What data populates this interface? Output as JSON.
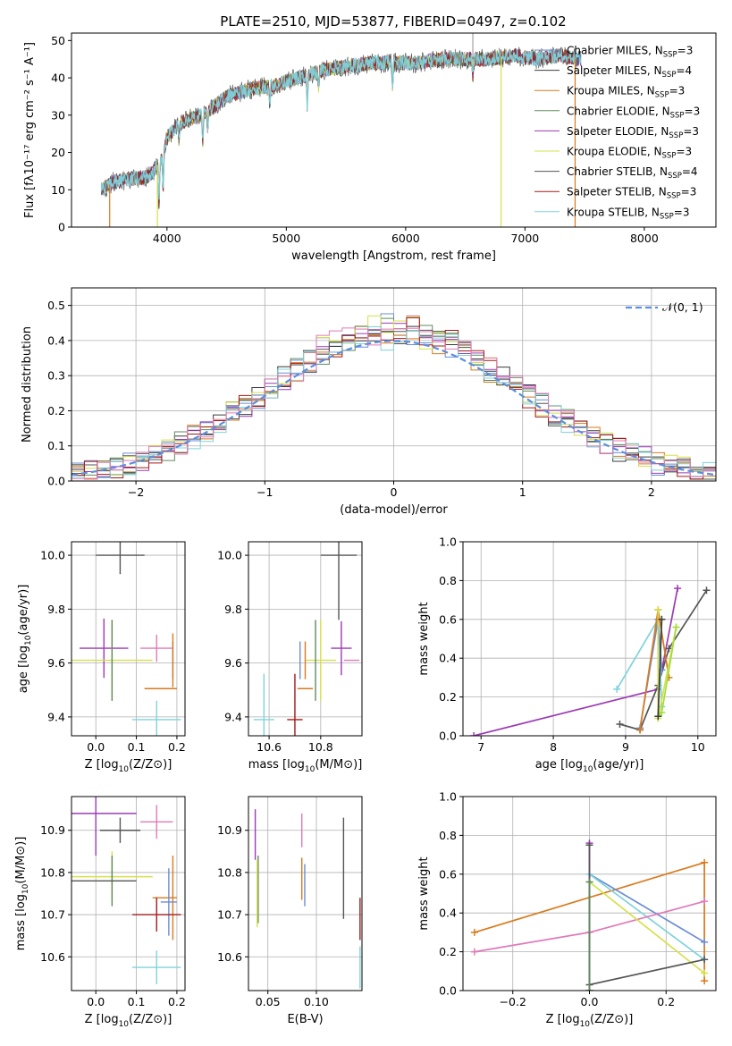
{
  "figure_title": "PLATE=2510, MJD=53877, FIBERID=0497, z=0.102",
  "colors": {
    "chabrier_miles": "#6b8ed6",
    "salpeter_miles": "#3b3b3b",
    "kroupa_miles": "#d97a1c",
    "chabrier_elodie": "#5f8a5f",
    "salpeter_elodie": "#9b3bb5",
    "kroupa_elodie": "#d6e04a",
    "chabrier_stelib": "#555555",
    "salpeter_stelib": "#a31a1a",
    "kroupa_stelib": "#7fd3dc",
    "gaussian": "#5b8ee0",
    "pink": "#e07ab8",
    "lime": "#a4dd3c"
  },
  "chart_data": [
    {
      "id": "spectrum",
      "type": "line",
      "xlabel": "wavelength [Angstrom, rest frame]",
      "ylabel": "Flux [fλ10⁻¹⁷ erg cm⁻² s⁻¹ A⁻¹]",
      "xlim": [
        3200,
        8600
      ],
      "ylim": [
        0,
        52
      ],
      "xticks": [
        4000,
        5000,
        6000,
        7000,
        8000
      ],
      "yticks": [
        0,
        10,
        20,
        30,
        40,
        50
      ],
      "legend_position": "top-right",
      "series": [
        {
          "name": "Chabrier MILES, N_SSP=3",
          "name_main": "Chabrier MILES, N",
          "name_sub": "SSP",
          "name_tail": "=3",
          "color": "#6b8ed6"
        },
        {
          "name": "Salpeter MILES, N_SSP=4",
          "name_main": "Salpeter MILES, N",
          "name_sub": "SSP",
          "name_tail": "=4",
          "color": "#3b3b3b"
        },
        {
          "name": "Kroupa MILES, N_SSP=3",
          "name_main": "Kroupa MILES, N",
          "name_sub": "SSP",
          "name_tail": "=3",
          "color": "#d97a1c"
        },
        {
          "name": "Chabrier ELODIE, N_SSP=3",
          "name_main": "Chabrier ELODIE, N",
          "name_sub": "SSP",
          "name_tail": "=3",
          "color": "#5f8a5f"
        },
        {
          "name": "Salpeter ELODIE, N_SSP=3",
          "name_main": "Salpeter ELODIE, N",
          "name_sub": "SSP",
          "name_tail": "=3",
          "color": "#9b3bb5"
        },
        {
          "name": "Kroupa ELODIE, N_SSP=3",
          "name_main": "Kroupa ELODIE, N",
          "name_sub": "SSP",
          "name_tail": "=3",
          "color": "#d6e04a"
        },
        {
          "name": "Chabrier STELIB, N_SSP=4",
          "name_main": "Chabrier STELIB, N",
          "name_sub": "SSP",
          "name_tail": "=4",
          "color": "#555555"
        },
        {
          "name": "Salpeter STELIB, N_SSP=3",
          "name_main": "Salpeter STELIB, N",
          "name_sub": "SSP",
          "name_tail": "=3",
          "color": "#a31a1a"
        },
        {
          "name": "Kroupa STELIB, N_SSP=3",
          "name_main": "Kroupa STELIB, N",
          "name_sub": "SSP",
          "name_tail": "=3",
          "color": "#7fd3dc"
        }
      ],
      "continuum": {
        "x": [
          3450,
          3550,
          3700,
          3850,
          3950,
          4000,
          4100,
          4300,
          4500,
          4700,
          4900,
          5100,
          5300,
          5500,
          5700,
          5900,
          6100,
          6300,
          6500,
          6700,
          6900,
          7100,
          7300,
          7450
        ],
        "y": [
          10,
          12,
          13,
          13.5,
          18,
          24,
          28,
          30,
          35,
          37,
          38,
          40,
          42,
          43,
          44,
          44,
          44,
          45,
          45,
          45,
          46,
          45,
          46,
          45
        ]
      },
      "absorption_lines": [
        {
          "x": 3933,
          "depth": 12
        },
        {
          "x": 3968,
          "depth": 10
        },
        {
          "x": 4102,
          "depth": 5
        },
        {
          "x": 4300,
          "depth": 8
        },
        {
          "x": 4340,
          "depth": 5
        },
        {
          "x": 4861,
          "depth": 5
        },
        {
          "x": 5175,
          "depth": 8
        },
        {
          "x": 5270,
          "depth": 4
        },
        {
          "x": 5890,
          "depth": 7
        },
        {
          "x": 6563,
          "depth": 5
        }
      ],
      "dropouts": [
        {
          "x": 3520,
          "color": "#d97a1c"
        },
        {
          "x": 3920,
          "color": "#d6e04a"
        },
        {
          "x": 6800,
          "color": "#d6e04a"
        },
        {
          "x": 7420,
          "color": "#d97a1c"
        }
      ],
      "spike": {
        "x": 6563,
        "y": 52
      }
    },
    {
      "id": "residuals",
      "type": "histogram",
      "xlabel": "(data-model)/error",
      "ylabel": "Normed distribution",
      "xlim": [
        -2.5,
        2.5
      ],
      "ylim": [
        0,
        0.55
      ],
      "xticks": [
        -2,
        -1,
        0,
        1,
        2
      ],
      "yticks": [
        0.0,
        0.1,
        0.2,
        0.3,
        0.4,
        0.5
      ],
      "grid": true,
      "legend_position": "top-right",
      "bin_width": 0.1,
      "gaussian_label": "𝒩(0, 1)",
      "series_colors": [
        "#6b8ed6",
        "#3b3b3b",
        "#d97a1c",
        "#5f8a5f",
        "#9b3bb5",
        "#d6e04a",
        "#555555",
        "#a31a1a",
        "#7fd3dc",
        "#e07ab8"
      ]
    },
    {
      "id": "age_vs_Z",
      "type": "errorbar",
      "xlabel_main": "Z [log",
      "xlabel_sub": "10",
      "xlabel_tail": "(Z/Z⊙)]",
      "ylabel_main": "age  [log",
      "ylabel_sub": "10",
      "ylabel_tail": "(age/yr)]",
      "xlim": [
        -0.06,
        0.22
      ],
      "ylim": [
        9.33,
        10.05
      ],
      "xticks": [
        0.0,
        0.1,
        0.2
      ],
      "yticks": [
        9.4,
        9.6,
        9.8,
        10.0
      ],
      "grid": true,
      "points": [
        {
          "x": 0.06,
          "y": 10.0,
          "xerr": 0.06,
          "yerr": 0.07,
          "color": "#555555"
        },
        {
          "x": 0.02,
          "y": 9.655,
          "xerr": 0.06,
          "yerr": 0.11,
          "color": "#9b3bb5"
        },
        {
          "x": 0.04,
          "y": 9.61,
          "xerr": 0.1,
          "yerr": 0.15,
          "color": "#d6e04a"
        },
        {
          "x": 0.15,
          "y": 9.655,
          "xerr": 0.04,
          "yerr": 0.05,
          "color": "#e07ab8"
        },
        {
          "x": 0.19,
          "y": 9.61,
          "xerr": 0.0,
          "yerr": 0.07,
          "color": "#6b8ed6"
        },
        {
          "x": 0.19,
          "y": 9.61,
          "xerr": 0.0,
          "yerr": 0.1,
          "color": "#d97a1c"
        },
        {
          "x": 0.16,
          "y": 9.505,
          "xerr": 0.04,
          "yerr": 0.0,
          "color": "#d97a1c"
        },
        {
          "x": 0.15,
          "y": 9.39,
          "xerr": 0.06,
          "yerr": 0.07,
          "color": "#7fd3dc"
        },
        {
          "x": 0.04,
          "y": 9.61,
          "xerr": 0.0,
          "yerr": 0.15,
          "color": "#5f8a5f"
        }
      ]
    },
    {
      "id": "age_vs_mass",
      "type": "errorbar",
      "xlabel_main": "mass [log",
      "xlabel_sub": "10",
      "xlabel_tail": "(M/M⊙)]",
      "xlim": [
        10.52,
        10.96
      ],
      "ylim": [
        9.33,
        10.05
      ],
      "xticks": [
        10.6,
        10.8
      ],
      "yticks": [
        9.4,
        9.6,
        9.8,
        10.0
      ],
      "grid": true,
      "points": [
        {
          "x": 10.87,
          "y": 10.0,
          "xerr": 0.07,
          "yerr": 0.24,
          "color": "#555555"
        },
        {
          "x": 10.88,
          "y": 9.655,
          "xerr": 0.04,
          "yerr": 0.1,
          "color": "#9b3bb5"
        },
        {
          "x": 10.92,
          "y": 9.61,
          "xerr": 0.03,
          "yerr": 0.0,
          "color": "#e07ab8"
        },
        {
          "x": 10.8,
          "y": 9.61,
          "xerr": 0.06,
          "yerr": 0.15,
          "color": "#d6e04a"
        },
        {
          "x": 10.78,
          "y": 9.61,
          "xerr": 0.0,
          "yerr": 0.15,
          "color": "#5f8a5f"
        },
        {
          "x": 10.74,
          "y": 9.61,
          "xerr": 0.0,
          "yerr": 0.07,
          "color": "#d97a1c"
        },
        {
          "x": 10.74,
          "y": 9.505,
          "xerr": 0.03,
          "yerr": 0.0,
          "color": "#d97a1c"
        },
        {
          "x": 10.72,
          "y": 9.61,
          "xerr": 0.0,
          "yerr": 0.07,
          "color": "#6b8ed6"
        },
        {
          "x": 10.7,
          "y": 9.39,
          "xerr": 0.03,
          "yerr": 0.17,
          "color": "#a31a1a"
        },
        {
          "x": 10.58,
          "y": 9.39,
          "xerr": 0.04,
          "yerr": 0.17,
          "color": "#7fd3dc"
        }
      ]
    },
    {
      "id": "weight_vs_age",
      "type": "line",
      "xlabel_main": "age  [log",
      "xlabel_sub": "10",
      "xlabel_tail": "(age/yr)]",
      "ylabel": "mass weight",
      "xlim": [
        6.75,
        10.25
      ],
      "ylim": [
        0,
        1.0
      ],
      "xticks": [
        7,
        8,
        9,
        10
      ],
      "yticks": [
        0.0,
        0.2,
        0.4,
        0.6,
        0.8,
        1.0
      ],
      "grid": true,
      "series": [
        {
          "color": "#9b3bb5",
          "x": [
            6.9,
            9.45,
            9.72
          ],
          "y": [
            0.0,
            0.24,
            0.76
          ]
        },
        {
          "color": "#555555",
          "x": [
            8.92,
            9.2,
            9.45,
            9.6,
            10.12
          ],
          "y": [
            0.06,
            0.03,
            0.26,
            0.45,
            0.75
          ]
        },
        {
          "color": "#7fd3dc",
          "x": [
            8.88,
            9.45,
            9.5
          ],
          "y": [
            0.24,
            0.6,
            0.15
          ]
        },
        {
          "color": "#6b8ed6",
          "x": [
            9.2,
            9.45,
            9.5
          ],
          "y": [
            0.04,
            0.6,
            0.34
          ]
        },
        {
          "color": "#d97a1c",
          "x": [
            9.2,
            9.45,
            9.6
          ],
          "y": [
            0.03,
            0.65,
            0.3
          ]
        },
        {
          "color": "#d6e04a",
          "x": [
            9.45,
            9.45,
            9.7
          ],
          "y": [
            0.65,
            0.09,
            0.56
          ]
        },
        {
          "color": "#a4dd3c",
          "x": [
            9.45,
            9.5,
            9.7
          ],
          "y": [
            0.1,
            0.12,
            0.56
          ]
        },
        {
          "color": "#3b3b3b",
          "x": [
            9.45,
            9.5
          ],
          "y": [
            0.1,
            0.6
          ]
        }
      ]
    },
    {
      "id": "mass_vs_Z",
      "type": "errorbar",
      "xlabel_main": "Z [log",
      "xlabel_sub": "10",
      "xlabel_tail": "(Z/Z⊙)]",
      "ylabel_main": "mass [log",
      "ylabel_sub": "10",
      "ylabel_tail": "(M/M⊙)]",
      "xlim": [
        -0.06,
        0.22
      ],
      "ylim": [
        10.52,
        10.98
      ],
      "xticks": [
        0.0,
        0.1,
        0.2
      ],
      "yticks": [
        10.6,
        10.7,
        10.8,
        10.9
      ],
      "grid": true,
      "points": [
        {
          "x": 0.0,
          "y": 10.94,
          "xerr": 0.1,
          "yerr": 0.1,
          "color": "#9b3bb5"
        },
        {
          "x": 0.06,
          "y": 10.9,
          "xerr": 0.05,
          "yerr": 0.03,
          "color": "#555555"
        },
        {
          "x": 0.04,
          "y": 10.79,
          "xerr": 0.1,
          "yerr": 0.06,
          "color": "#d6e04a"
        },
        {
          "x": 0.04,
          "y": 10.78,
          "xerr": 0.0,
          "yerr": 0.06,
          "color": "#5f8a5f"
        },
        {
          "x": 0.02,
          "y": 10.78,
          "xerr": 0.08,
          "yerr": 0.0,
          "color": "#555555"
        },
        {
          "x": 0.15,
          "y": 10.92,
          "xerr": 0.04,
          "yerr": 0.04,
          "color": "#e07ab8"
        },
        {
          "x": 0.19,
          "y": 10.74,
          "xerr": 0.0,
          "yerr": 0.1,
          "color": "#d97a1c"
        },
        {
          "x": 0.17,
          "y": 10.74,
          "xerr": 0.03,
          "yerr": 0.0,
          "color": "#d97a1c"
        },
        {
          "x": 0.18,
          "y": 10.73,
          "xerr": 0.02,
          "yerr": 0.08,
          "color": "#6b8ed6"
        },
        {
          "x": 0.15,
          "y": 10.7,
          "xerr": 0.06,
          "yerr": 0.04,
          "color": "#a31a1a"
        },
        {
          "x": 0.15,
          "y": 10.575,
          "xerr": 0.06,
          "yerr": 0.04,
          "color": "#7fd3dc"
        }
      ]
    },
    {
      "id": "mass_vs_ebv",
      "type": "errorbar",
      "xlabel": "E(B-V)",
      "xlim": [
        0.03,
        0.147
      ],
      "ylim": [
        10.52,
        10.98
      ],
      "xticks": [
        0.05,
        0.1
      ],
      "yticks": [
        10.6,
        10.7,
        10.8,
        10.9
      ],
      "grid": true,
      "points": [
        {
          "x": 0.037,
          "y": 10.89,
          "xerr": 0.0,
          "yerr": 0.06,
          "color": "#9b3bb5"
        },
        {
          "x": 0.04,
          "y": 10.76,
          "xerr": 0.0,
          "yerr": 0.08,
          "color": "#5f8a5f"
        },
        {
          "x": 0.039,
          "y": 10.75,
          "xerr": 0.0,
          "yerr": 0.08,
          "color": "#d6e04a"
        },
        {
          "x": 0.085,
          "y": 10.9,
          "xerr": 0.0,
          "yerr": 0.04,
          "color": "#e07ab8"
        },
        {
          "x": 0.085,
          "y": 10.785,
          "xerr": 0.0,
          "yerr": 0.05,
          "color": "#d97a1c"
        },
        {
          "x": 0.088,
          "y": 10.77,
          "xerr": 0.0,
          "yerr": 0.05,
          "color": "#6b8ed6"
        },
        {
          "x": 0.128,
          "y": 10.81,
          "xerr": 0.0,
          "yerr": 0.12,
          "color": "#555555"
        },
        {
          "x": 0.145,
          "y": 10.69,
          "xerr": 0.0,
          "yerr": 0.05,
          "color": "#a31a1a"
        },
        {
          "x": 0.145,
          "y": 10.575,
          "xerr": 0.0,
          "yerr": 0.05,
          "color": "#7fd3dc"
        }
      ]
    },
    {
      "id": "weight_vs_Z",
      "type": "line",
      "xlabel_main": "Z [log",
      "xlabel_sub": "10",
      "xlabel_tail": "(Z/Z⊙)]",
      "ylabel": "mass weight",
      "xlim": [
        -0.33,
        0.33
      ],
      "ylim": [
        0,
        1.0
      ],
      "xticks": [
        -0.2,
        0.0,
        0.2
      ],
      "yticks": [
        0.0,
        0.2,
        0.4,
        0.6,
        0.8,
        1.0
      ],
      "grid": true,
      "series": [
        {
          "color": "#d97a1c",
          "x": [
            -0.3,
            0.3,
            0.3
          ],
          "y": [
            0.3,
            0.66,
            0.05
          ]
        },
        {
          "color": "#6b8ed6",
          "x": [
            0.0,
            0.0,
            0.3
          ],
          "y": [
            0.0,
            0.6,
            0.25
          ]
        },
        {
          "color": "#7fd3dc",
          "x": [
            0.0,
            0.0,
            0.3
          ],
          "y": [
            0.0,
            0.6,
            0.16
          ]
        },
        {
          "color": "#e07ab8",
          "x": [
            -0.3,
            0.0,
            0.3
          ],
          "y": [
            0.2,
            0.3,
            0.46
          ]
        },
        {
          "color": "#d6e04a",
          "x": [
            0.0,
            0.0,
            0.3
          ],
          "y": [
            0.0,
            0.56,
            0.09
          ]
        },
        {
          "color": "#9b3bb5",
          "x": [
            0.0,
            0.0
          ],
          "y": [
            0.0,
            0.76
          ]
        },
        {
          "color": "#555555",
          "x": [
            0.0,
            0.0,
            0.3
          ],
          "y": [
            0.75,
            0.03,
            0.16
          ]
        },
        {
          "color": "#5f8a5f",
          "x": [
            0.0,
            0.0
          ],
          "y": [
            0.0,
            0.56
          ]
        }
      ]
    }
  ]
}
